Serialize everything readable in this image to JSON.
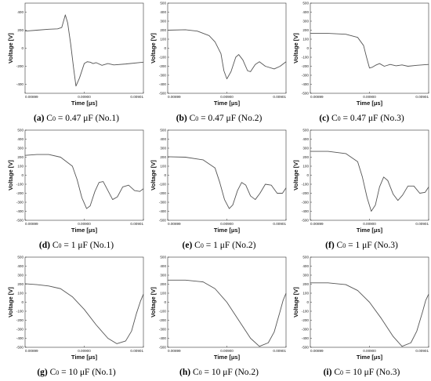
{
  "chart_data": [
    {
      "type": "line",
      "caption": {
        "label": "(a)",
        "c_main": "C",
        "c_sub": "0",
        "rest": " = 0.47 μF (No.1)"
      },
      "xlabel": "Time [μs]",
      "ylabel": "Voltage [V]",
      "xlim": [
        0.00899,
        0.00901
      ],
      "ylim": [
        -500,
        500
      ],
      "xticks": [
        "0.00899",
        "0.00900",
        "0.00901"
      ],
      "yticks": [
        -400,
        -200,
        0,
        200,
        400
      ],
      "series": [
        {
          "values": [
            [
              0.00899,
              190
            ],
            [
              0.008992,
              200
            ],
            [
              0.008994,
              210
            ],
            [
              0.0089955,
              215
            ],
            [
              0.0089962,
              230
            ],
            [
              0.0089968,
              370
            ],
            [
              0.0089972,
              280
            ],
            [
              0.0089977,
              50
            ],
            [
              0.0089982,
              -220
            ],
            [
              0.0089986,
              -420
            ],
            [
              0.0089992,
              -330
            ],
            [
              0.009,
              -170
            ],
            [
              0.0090005,
              -150
            ],
            [
              0.009001,
              -155
            ],
            [
              0.0090015,
              -170
            ],
            [
              0.009002,
              -160
            ],
            [
              0.009003,
              -190
            ],
            [
              0.009004,
              -170
            ],
            [
              0.009005,
              -185
            ],
            [
              0.009007,
              -175
            ],
            [
              0.00901,
              -155
            ]
          ]
        }
      ]
    },
    {
      "type": "line",
      "caption": {
        "label": "(b)",
        "c_main": "C",
        "c_sub": "0",
        "rest": " = 0.47 μF (No.2)"
      },
      "xlabel": "Time [μs]",
      "ylabel": "Voltage [V]",
      "xlim": [
        0.00899,
        0.00901
      ],
      "ylim": [
        -500,
        500
      ],
      "xticks": [
        "0.00899",
        "0.00900",
        "0.00901"
      ],
      "yticks": [
        -500,
        -400,
        -300,
        -200,
        -100,
        0,
        100,
        200,
        300,
        400,
        500
      ],
      "series": [
        {
          "values": [
            [
              0.00899,
              200
            ],
            [
              0.008993,
              205
            ],
            [
              0.008995,
              190
            ],
            [
              0.008997,
              140
            ],
            [
              0.008998,
              70
            ],
            [
              0.008999,
              -60
            ],
            [
              0.0089995,
              -250
            ],
            [
              0.009,
              -340
            ],
            [
              0.0090007,
              -260
            ],
            [
              0.0090015,
              -100
            ],
            [
              0.009002,
              -70
            ],
            [
              0.0090027,
              -130
            ],
            [
              0.0090035,
              -250
            ],
            [
              0.009004,
              -260
            ],
            [
              0.0090048,
              -180
            ],
            [
              0.0090055,
              -150
            ],
            [
              0.0090065,
              -200
            ],
            [
              0.009008,
              -230
            ],
            [
              0.009009,
              -200
            ],
            [
              0.00901,
              -150
            ]
          ]
        }
      ]
    },
    {
      "type": "line",
      "caption": {
        "label": "(c)",
        "c_main": "C",
        "c_sub": "0",
        "rest": " = 0.47 μF (No.3)"
      },
      "xlabel": "Time [μs]",
      "ylabel": "Voltage [V]",
      "xlim": [
        0.00899,
        0.00901
      ],
      "ylim": [
        -500,
        500
      ],
      "xticks": [
        "0.00899",
        "0.00900",
        "0.00901"
      ],
      "yticks": [
        -500,
        -400,
        -300,
        -200,
        -100,
        0,
        100,
        200,
        300,
        400,
        500
      ],
      "series": [
        {
          "values": [
            [
              0.00899,
              165
            ],
            [
              0.008993,
              165
            ],
            [
              0.008996,
              155
            ],
            [
              0.008998,
              120
            ],
            [
              0.008999,
              30
            ],
            [
              0.0089995,
              -100
            ],
            [
              0.009,
              -220
            ],
            [
              0.0090005,
              -210
            ],
            [
              0.009001,
              -190
            ],
            [
              0.0090017,
              -170
            ],
            [
              0.0090025,
              -200
            ],
            [
              0.0090035,
              -180
            ],
            [
              0.0090045,
              -195
            ],
            [
              0.0090055,
              -185
            ],
            [
              0.0090065,
              -200
            ],
            [
              0.009008,
              -190
            ],
            [
              0.00901,
              -180
            ]
          ]
        }
      ]
    },
    {
      "type": "line",
      "caption": {
        "label": "(d)",
        "c_main": "C",
        "c_sub": "0",
        "rest": " = 1 μF (No.1)"
      },
      "xlabel": "Time [μs]",
      "ylabel": "Voltage [V]",
      "xlim": [
        0.00899,
        0.00901
      ],
      "ylim": [
        -500,
        500
      ],
      "xticks": [
        "0.00899",
        "0.00900",
        "0.00901"
      ],
      "yticks": [
        -500,
        -400,
        -300,
        -200,
        -100,
        0,
        100,
        200,
        300,
        400,
        500
      ],
      "series": [
        {
          "values": [
            [
              0.00899,
              220
            ],
            [
              0.008992,
              230
            ],
            [
              0.008994,
              230
            ],
            [
              0.008996,
              200
            ],
            [
              0.008998,
              100
            ],
            [
              0.0089988,
              -50
            ],
            [
              0.0089996,
              -250
            ],
            [
              0.0090004,
              -370
            ],
            [
              0.009001,
              -340
            ],
            [
              0.0090018,
              -180
            ],
            [
              0.0090025,
              -80
            ],
            [
              0.0090032,
              -70
            ],
            [
              0.009004,
              -170
            ],
            [
              0.0090048,
              -270
            ],
            [
              0.0090056,
              -240
            ],
            [
              0.0090065,
              -130
            ],
            [
              0.0090075,
              -110
            ],
            [
              0.0090085,
              -170
            ],
            [
              0.0090094,
              -180
            ],
            [
              0.00901,
              -150
            ]
          ]
        }
      ]
    },
    {
      "type": "line",
      "caption": {
        "label": "(e)",
        "c_main": "C",
        "c_sub": "0",
        "rest": " = 1 μF (No.2)"
      },
      "xlabel": "Time [μs]",
      "ylabel": "Voltage [V]",
      "xlim": [
        0.00899,
        0.00901
      ],
      "ylim": [
        -500,
        500
      ],
      "xticks": [
        "0.00899",
        "0.00900",
        "0.00901"
      ],
      "yticks": [
        -500,
        -400,
        -300,
        -200,
        -100,
        0,
        100,
        200,
        300,
        400,
        500
      ],
      "series": [
        {
          "values": [
            [
              0.00899,
              205
            ],
            [
              0.008993,
              200
            ],
            [
              0.008996,
              170
            ],
            [
              0.008998,
              80
            ],
            [
              0.0089988,
              -80
            ],
            [
              0.0089996,
              -270
            ],
            [
              0.0090004,
              -370
            ],
            [
              0.009001,
              -330
            ],
            [
              0.0090018,
              -170
            ],
            [
              0.0090025,
              -80
            ],
            [
              0.0090032,
              -110
            ],
            [
              0.009004,
              -230
            ],
            [
              0.0090048,
              -270
            ],
            [
              0.0090056,
              -200
            ],
            [
              0.0090065,
              -100
            ],
            [
              0.0090075,
              -110
            ],
            [
              0.0090085,
              -200
            ],
            [
              0.0090094,
              -200
            ],
            [
              0.00901,
              -140
            ]
          ]
        }
      ]
    },
    {
      "type": "line",
      "caption": {
        "label": "(f)",
        "c_main": "C",
        "c_sub": "0",
        "rest": " = 1 μF (No.3)"
      },
      "xlabel": "Time [μs]",
      "ylabel": "Voltage [V]",
      "xlim": [
        0.00899,
        0.00901
      ],
      "ylim": [
        -500,
        500
      ],
      "xticks": [
        "0.00899",
        "0.00900",
        "0.00901"
      ],
      "yticks": [
        -500,
        -400,
        -300,
        -200,
        -100,
        0,
        100,
        200,
        300,
        400,
        500
      ],
      "series": [
        {
          "values": [
            [
              0.00899,
              265
            ],
            [
              0.008993,
              265
            ],
            [
              0.008996,
              240
            ],
            [
              0.008998,
              150
            ],
            [
              0.0089988,
              -20
            ],
            [
              0.0089996,
              -250
            ],
            [
              0.0090003,
              -400
            ],
            [
              0.009001,
              -330
            ],
            [
              0.0090017,
              -130
            ],
            [
              0.0090024,
              -20
            ],
            [
              0.0090031,
              -60
            ],
            [
              0.009004,
              -210
            ],
            [
              0.0090048,
              -280
            ],
            [
              0.0090056,
              -220
            ],
            [
              0.0090065,
              -120
            ],
            [
              0.0090075,
              -120
            ],
            [
              0.0090085,
              -200
            ],
            [
              0.0090094,
              -190
            ],
            [
              0.00901,
              -130
            ]
          ]
        }
      ]
    },
    {
      "type": "line",
      "caption": {
        "label": "(g)",
        "c_main": "C",
        "c_sub": "0",
        "rest": " = 10 μF (No.1)"
      },
      "xlabel": "Time [μs]",
      "ylabel": "Voltage [V]",
      "xlim": [
        0.00899,
        0.00901
      ],
      "ylim": [
        -500,
        500
      ],
      "xticks": [
        "0.00899",
        "0.00900",
        "0.00901"
      ],
      "yticks": [
        -500,
        -400,
        -300,
        -200,
        -100,
        0,
        100,
        200,
        300,
        400,
        500
      ],
      "series": [
        {
          "values": [
            [
              0.00899,
              205
            ],
            [
              0.008992,
              195
            ],
            [
              0.008994,
              180
            ],
            [
              0.008996,
              150
            ],
            [
              0.008998,
              60
            ],
            [
              0.009,
              -80
            ],
            [
              0.009002,
              -250
            ],
            [
              0.009004,
              -400
            ],
            [
              0.0090055,
              -460
            ],
            [
              0.009007,
              -430
            ],
            [
              0.009008,
              -320
            ],
            [
              0.0090088,
              -130
            ],
            [
              0.0090095,
              10
            ],
            [
              0.00901,
              90
            ]
          ]
        }
      ]
    },
    {
      "type": "line",
      "caption": {
        "label": "(h)",
        "c_main": "C",
        "c_sub": "0",
        "rest": " = 10 μF (No.2)"
      },
      "xlabel": "Time [μs]",
      "ylabel": "Voltage [V]",
      "xlim": [
        0.00899,
        0.00901
      ],
      "ylim": [
        -500,
        500
      ],
      "xticks": [
        "0.00899",
        "0.00900",
        "0.00901"
      ],
      "yticks": [
        -500,
        -400,
        -300,
        -200,
        -100,
        0,
        100,
        200,
        300,
        400,
        500
      ],
      "series": [
        {
          "values": [
            [
              0.00899,
              245
            ],
            [
              0.008993,
              245
            ],
            [
              0.008996,
              225
            ],
            [
              0.008998,
              150
            ],
            [
              0.009,
              0
            ],
            [
              0.009002,
              -200
            ],
            [
              0.009004,
              -400
            ],
            [
              0.0090055,
              -490
            ],
            [
              0.009007,
              -450
            ],
            [
              0.009008,
              -330
            ],
            [
              0.009009,
              -100
            ],
            [
              0.0090095,
              20
            ],
            [
              0.00901,
              100
            ]
          ]
        }
      ]
    },
    {
      "type": "line",
      "caption": {
        "label": "(i)",
        "c_main": "C",
        "c_sub": "0",
        "rest": " = 10 μF (No.3)"
      },
      "xlabel": "Time [μs]",
      "ylabel": "Voltage [V]",
      "xlim": [
        0.00899,
        0.00901
      ],
      "ylim": [
        -500,
        500
      ],
      "xticks": [
        "0.00899",
        "0.00900",
        "0.00901"
      ],
      "yticks": [
        -500,
        -400,
        -300,
        -200,
        -100,
        0,
        100,
        200,
        300,
        400,
        500
      ],
      "series": [
        {
          "values": [
            [
              0.00899,
              215
            ],
            [
              0.008993,
              215
            ],
            [
              0.008996,
              195
            ],
            [
              0.008998,
              130
            ],
            [
              0.009,
              0
            ],
            [
              0.009002,
              -180
            ],
            [
              0.009004,
              -380
            ],
            [
              0.0090055,
              -490
            ],
            [
              0.009007,
              -450
            ],
            [
              0.009008,
              -320
            ],
            [
              0.009009,
              -100
            ],
            [
              0.0090095,
              20
            ],
            [
              0.00901,
              90
            ]
          ]
        }
      ]
    }
  ]
}
